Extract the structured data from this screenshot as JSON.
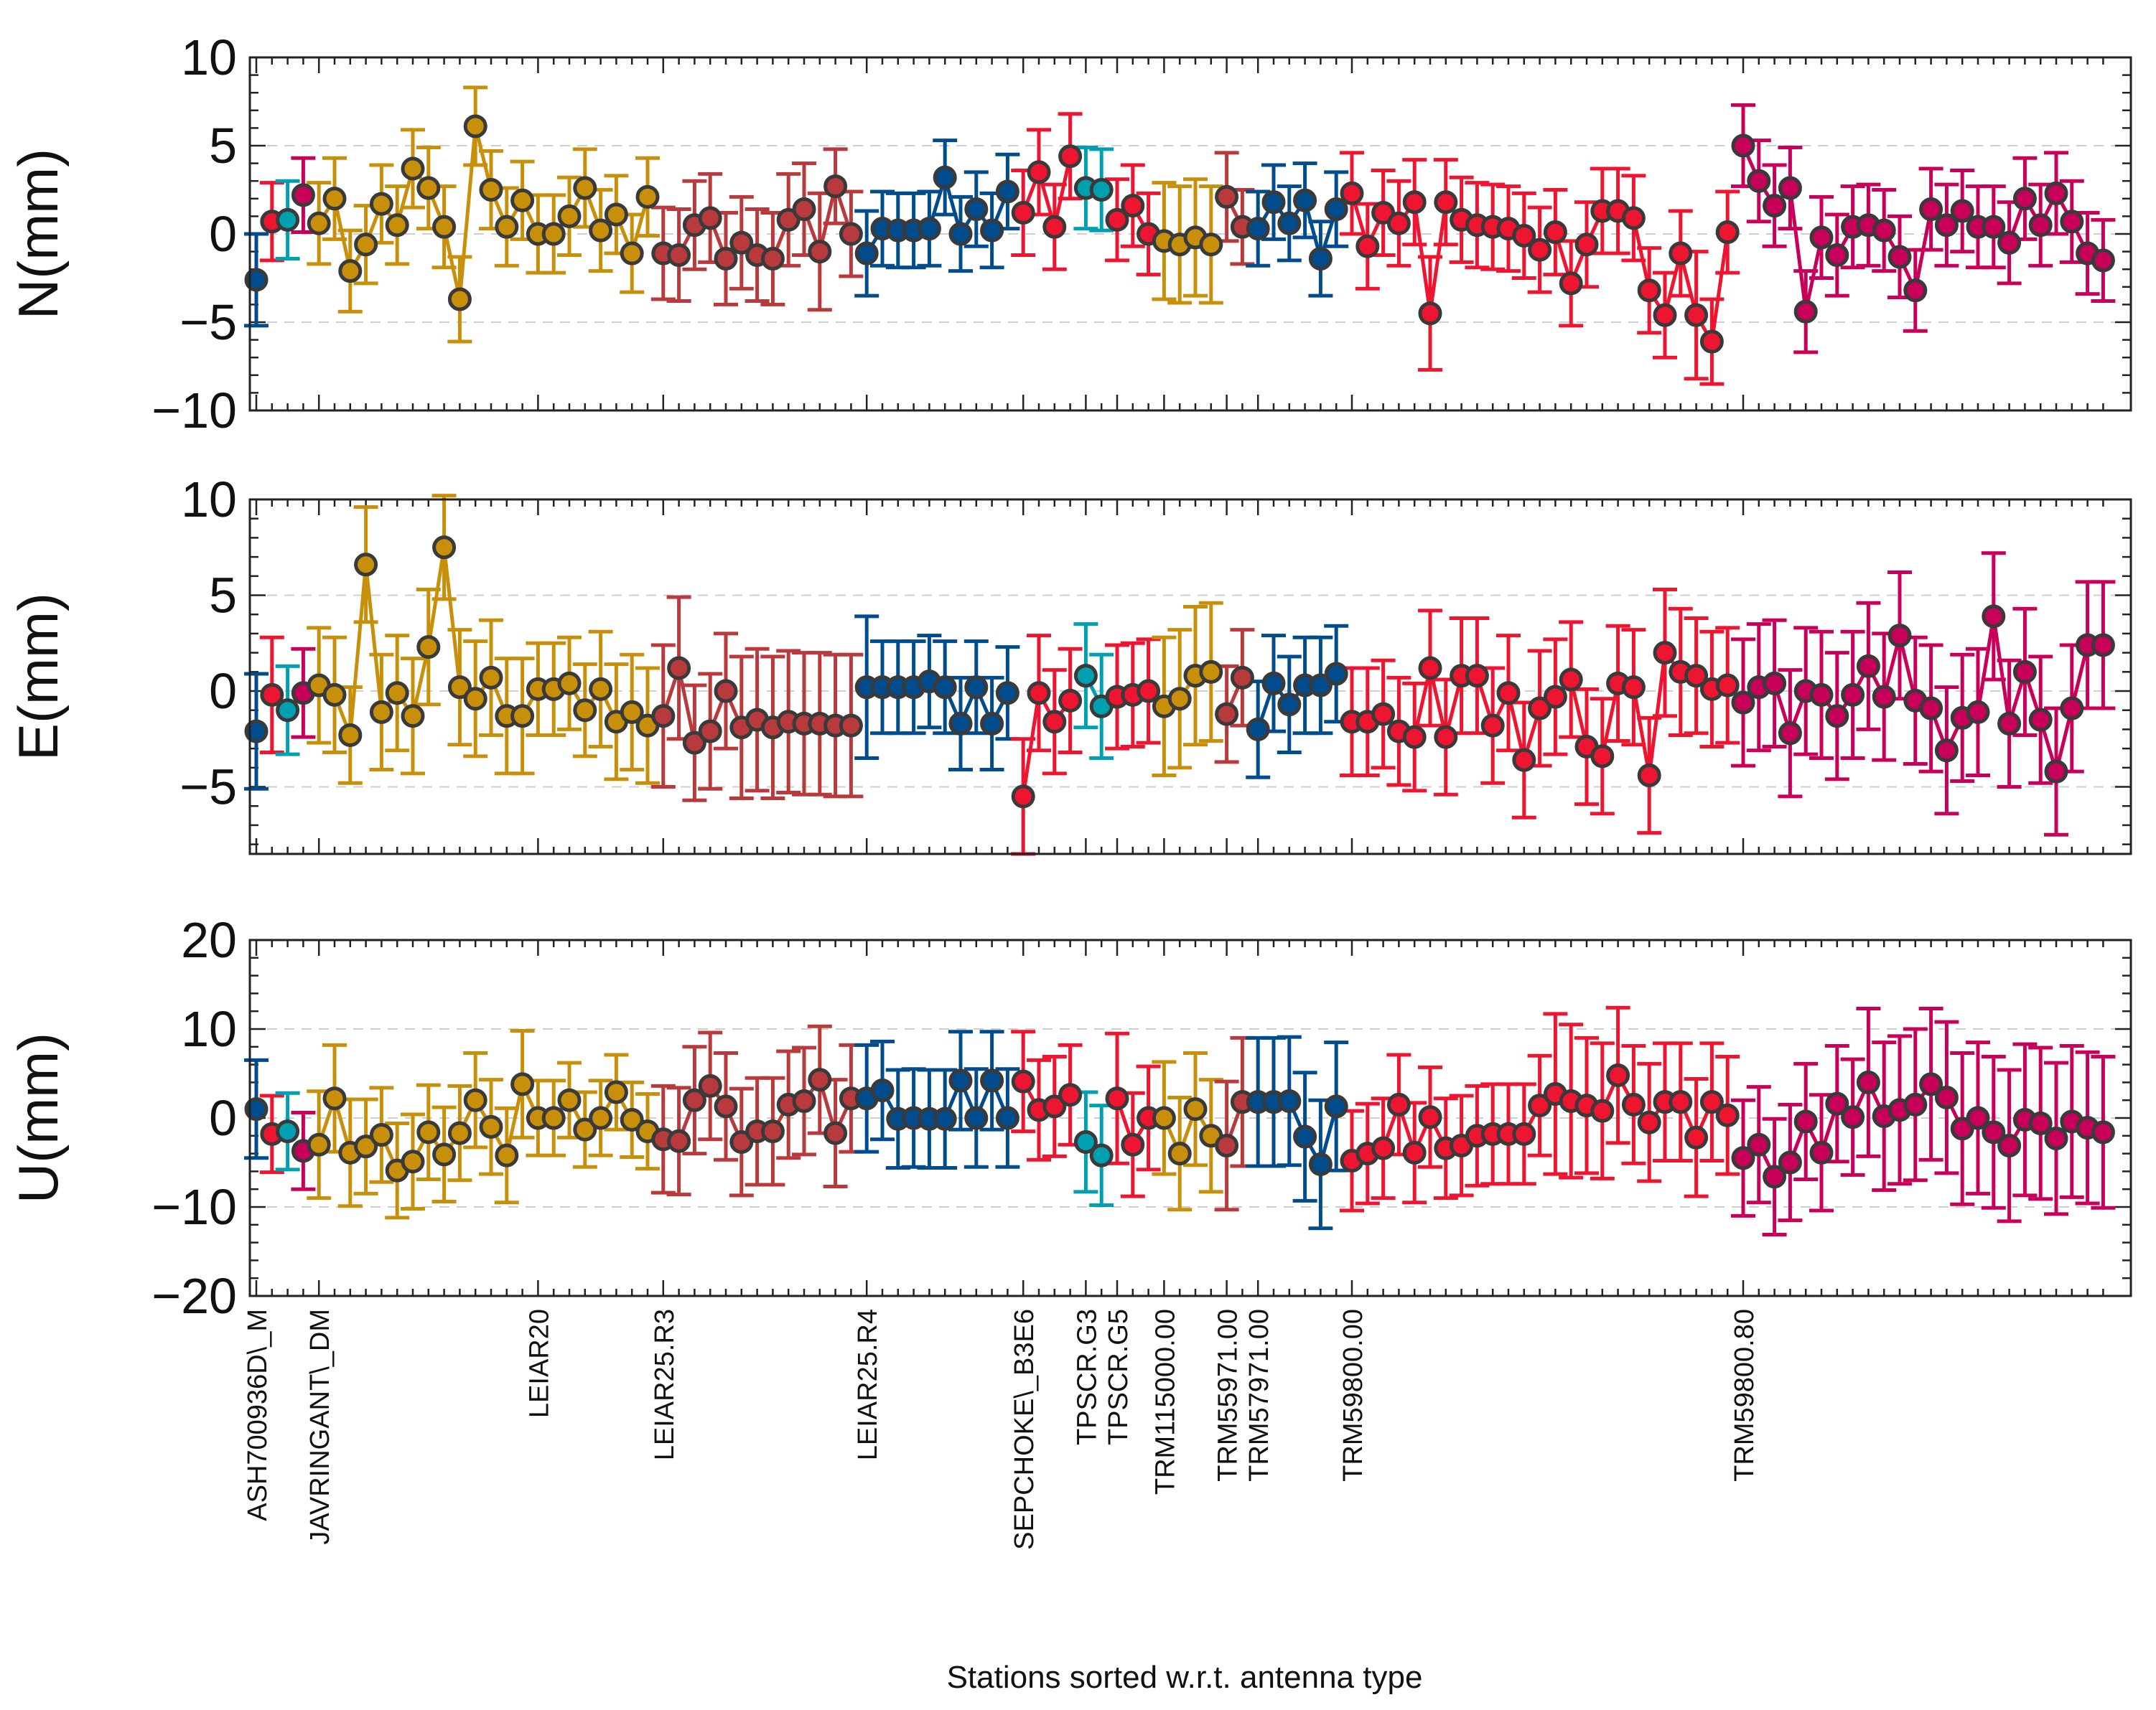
{
  "chart_data": {
    "type": "scatter",
    "xlabel": "Stations sorted w.r.t. antenna type",
    "group_colors": [
      "#00a0b0",
      "#c8900a",
      "#b83a3c",
      "#004c8c",
      "#ee1530",
      "#c8005a"
    ],
    "antenna_groups": [
      {
        "label": "ASH700936D\\_M",
        "start": 0
      },
      {
        "label": "JAVRINGANT\\_DM",
        "start": 4
      },
      {
        "label": "LEIAR20",
        "start": 18
      },
      {
        "label": "LEIAR25.R3",
        "start": 26
      },
      {
        "label": "LEIAR25.R4",
        "start": 39
      },
      {
        "label": "SEPCHOKE\\_B3E6",
        "start": 49
      },
      {
        "label": "TPSCR.G3",
        "start": 53
      },
      {
        "label": "TPSCR.G5",
        "start": 55
      },
      {
        "label": "TRM115000.00",
        "start": 58
      },
      {
        "label": "TRM55971.00",
        "start": 62
      },
      {
        "label": "TRM57971.00",
        "start": 64
      },
      {
        "label": "TRM59800.00",
        "start": 70
      },
      {
        "label": "TRM59800.80",
        "start": 95
      }
    ],
    "n_stations": 119,
    "panels": [
      {
        "ylabel": "N(mm)",
        "ylim": [
          -10,
          10
        ],
        "yticks": [
          -10,
          -5,
          0,
          5,
          10
        ],
        "yticklabels": [
          "−10",
          "−5",
          "0",
          "5",
          "10"
        ],
        "values": [
          -2.6,
          0.7,
          0.8,
          2.2,
          0.6,
          2.0,
          -2.1,
          -0.6,
          1.7,
          0.5,
          3.7,
          2.6,
          0.4,
          -3.7,
          6.1,
          2.5,
          0.4,
          1.9,
          0.0,
          0.0,
          1.0,
          2.6,
          0.2,
          1.1,
          -1.1,
          2.1,
          -1.1,
          -1.2,
          0.5,
          0.9,
          -1.4,
          -0.5,
          -1.2,
          -1.4,
          0.8,
          1.4,
          -1.0,
          2.7,
          0.0,
          -1.1,
          0.3,
          0.2,
          0.2,
          0.3,
          3.2,
          0.0,
          1.4,
          0.2,
          2.4,
          1.2,
          3.5,
          0.4,
          4.4,
          2.6,
          2.5,
          0.8,
          1.6,
          0.0,
          -0.4,
          -0.6,
          -0.2,
          -0.6,
          2.1,
          0.4,
          0.3,
          1.8,
          0.6,
          1.9,
          -1.4,
          1.4,
          2.3,
          -0.7,
          1.2,
          0.6,
          1.8,
          -4.5,
          1.8,
          0.8,
          0.5,
          0.4,
          0.3,
          -0.1,
          -0.9,
          0.1,
          -2.8,
          -0.6,
          1.3,
          1.3,
          0.9,
          -3.2,
          -4.6,
          -1.1,
          -4.6,
          -6.1,
          0.1,
          5.0,
          3.0,
          1.6,
          2.6,
          -4.4,
          -0.2,
          -1.2,
          0.4,
          0.5,
          0.2,
          -1.3,
          -3.2,
          1.4,
          0.5,
          1.3,
          0.4,
          0.4,
          -0.5,
          2.0,
          0.5,
          2.3,
          0.7,
          -1.1,
          -1.5
        ],
        "errors": [
          2.6,
          2.2,
          2.2,
          2.1,
          2.3,
          2.3,
          2.3,
          2.2,
          2.2,
          2.2,
          2.2,
          2.3,
          2.3,
          2.4,
          2.2,
          2.2,
          2.2,
          2.2,
          2.2,
          2.2,
          2.2,
          2.2,
          2.3,
          2.2,
          2.2,
          2.2,
          2.6,
          2.6,
          2.5,
          2.5,
          2.6,
          2.6,
          2.6,
          2.6,
          2.6,
          2.6,
          3.3,
          2.1,
          2.4,
          2.4,
          2.1,
          2.1,
          2.1,
          2.1,
          2.1,
          2.1,
          2.1,
          2.1,
          2.1,
          2.4,
          2.4,
          2.4,
          2.4,
          2.3,
          2.3,
          2.3,
          2.3,
          2.3,
          3.3,
          3.3,
          3.3,
          3.3,
          2.5,
          2.1,
          2.1,
          2.1,
          2.1,
          2.1,
          2.1,
          2.1,
          2.3,
          2.4,
          2.4,
          2.4,
          2.4,
          3.2,
          2.4,
          2.4,
          2.4,
          2.4,
          2.4,
          2.4,
          2.4,
          2.4,
          2.4,
          2.4,
          2.4,
          2.4,
          2.4,
          2.4,
          2.4,
          2.4,
          3.6,
          2.4,
          2.3,
          2.3,
          2.3,
          2.3,
          2.3,
          2.3,
          2.3,
          2.3,
          2.3,
          2.3,
          2.3,
          2.3,
          2.3,
          2.3,
          2.3,
          2.3,
          2.3,
          2.3,
          2.3,
          2.3,
          2.3,
          2.3,
          2.3,
          2.3,
          2.3
        ]
      },
      {
        "ylabel": "E(mm)",
        "ylim": [
          -8.5,
          10
        ],
        "yticks": [
          -5,
          0,
          5,
          10
        ],
        "yticklabels": [
          "−5",
          "0",
          "5",
          "10"
        ],
        "values": [
          -2.1,
          -0.2,
          -1.0,
          -0.1,
          0.3,
          -0.2,
          -2.3,
          6.6,
          -1.1,
          -0.1,
          -1.3,
          2.3,
          7.5,
          0.2,
          -0.4,
          0.7,
          -1.3,
          -1.3,
          0.1,
          0.1,
          0.4,
          -1.0,
          0.1,
          -1.6,
          -1.1,
          -1.8,
          -1.3,
          1.2,
          -2.7,
          -2.1,
          0.0,
          -1.9,
          -1.5,
          -1.9,
          -1.6,
          -1.7,
          -1.7,
          -1.8,
          -1.8,
          0.2,
          0.2,
          0.2,
          0.2,
          0.5,
          0.2,
          -1.7,
          0.2,
          -1.7,
          -0.1,
          -5.5,
          -0.1,
          -1.6,
          -0.5,
          0.8,
          -0.8,
          -0.3,
          -0.2,
          0.0,
          -0.8,
          -0.4,
          0.8,
          1.0,
          -1.2,
          0.7,
          -2.0,
          0.4,
          -0.7,
          0.3,
          0.3,
          0.9,
          -1.6,
          -1.6,
          -1.2,
          -2.1,
          -2.4,
          1.2,
          -2.4,
          0.8,
          0.8,
          -1.8,
          -0.1,
          -3.6,
          -0.9,
          -0.3,
          0.6,
          -2.9,
          -3.4,
          0.4,
          0.2,
          -4.4,
          2.0,
          1.0,
          0.8,
          0.1,
          0.3,
          -0.6,
          0.2,
          0.4,
          -2.2,
          0.0,
          -0.2,
          -1.3,
          -0.2,
          1.3,
          -0.3,
          2.9,
          -0.5,
          -0.9,
          -3.1,
          -1.4,
          -1.1,
          3.9,
          -1.7,
          1.0,
          -1.5,
          -4.2,
          -0.9,
          2.4,
          2.4
        ],
        "errors": [
          3.0,
          3.0,
          2.3,
          2.3,
          3.0,
          3.0,
          2.5,
          3.0,
          3.0,
          3.0,
          3.0,
          3.0,
          2.7,
          3.0,
          3.0,
          3.0,
          3.0,
          3.0,
          2.4,
          2.4,
          2.4,
          2.4,
          3.0,
          3.0,
          3.0,
          3.0,
          3.7,
          3.7,
          3.0,
          3.0,
          3.0,
          3.7,
          3.7,
          3.7,
          3.7,
          3.7,
          3.7,
          3.7,
          3.7,
          3.7,
          2.4,
          2.4,
          2.4,
          2.4,
          2.4,
          2.4,
          2.4,
          2.4,
          2.4,
          3.0,
          3.0,
          2.7,
          2.7,
          2.7,
          2.7,
          2.7,
          2.7,
          2.7,
          3.6,
          3.6,
          3.6,
          3.6,
          2.5,
          2.5,
          2.5,
          2.5,
          2.5,
          2.5,
          2.5,
          2.5,
          2.8,
          2.8,
          2.8,
          2.8,
          2.8,
          3.0,
          3.0,
          3.0,
          3.0,
          3.0,
          3.0,
          3.0,
          3.0,
          3.0,
          3.0,
          3.0,
          3.0,
          3.0,
          3.0,
          3.0,
          3.3,
          3.3,
          3.0,
          3.0,
          3.0,
          3.3,
          3.3,
          3.3,
          3.3,
          3.3,
          3.3,
          3.3,
          3.3,
          3.3,
          3.3,
          3.3,
          3.3,
          3.3,
          3.3,
          3.3,
          3.3,
          3.3,
          3.3,
          3.3,
          3.3,
          3.3,
          3.3,
          3.3,
          3.3
        ]
      },
      {
        "ylabel": "U(mm)",
        "ylim": [
          -20,
          20
        ],
        "yticks": [
          -20,
          -10,
          0,
          10,
          20
        ],
        "yticklabels": [
          "−20",
          "−10",
          "0",
          "10",
          "20"
        ],
        "values": [
          1.0,
          -1.8,
          -1.5,
          -3.7,
          -3.0,
          2.2,
          -3.9,
          -3.2,
          -1.9,
          -5.9,
          -4.9,
          -1.6,
          -4.1,
          -1.7,
          2.0,
          -1.0,
          -4.2,
          3.8,
          0.0,
          0.0,
          2.0,
          -1.3,
          0.0,
          2.9,
          -0.2,
          -1.5,
          -2.4,
          -2.6,
          2.0,
          3.6,
          1.3,
          -2.7,
          -1.5,
          -1.5,
          1.5,
          1.9,
          4.3,
          -1.7,
          2.2,
          2.2,
          3.1,
          -0.1,
          0.0,
          -0.1,
          -0.1,
          4.2,
          0.0,
          4.2,
          0.0,
          4.1,
          0.9,
          1.3,
          2.6,
          -2.7,
          -4.2,
          2.2,
          -3.0,
          0.0,
          0.0,
          -4.0,
          1.0,
          -2.0,
          -3.1,
          1.8,
          1.8,
          1.8,
          1.9,
          -2.1,
          -5.2,
          1.3,
          -4.8,
          -4.0,
          -3.4,
          1.5,
          -3.9,
          0.1,
          -3.4,
          -3.1,
          -2.0,
          -1.8,
          -1.8,
          -1.8,
          1.4,
          2.7,
          1.9,
          1.4,
          0.8,
          4.8,
          1.5,
          -0.5,
          1.8,
          1.8,
          -2.2,
          1.8,
          0.3,
          -4.5,
          -3.0,
          -6.6,
          -5.0,
          -0.4,
          -3.9,
          1.6,
          0.1,
          4.0,
          0.2,
          0.9,
          1.5,
          3.8,
          2.3,
          -1.2,
          0.0,
          -1.6,
          -3.1,
          -0.2,
          -0.6,
          -2.3,
          -0.4,
          -1.1,
          -1.6
        ],
        "errors": [
          5.5,
          4.3,
          4.3,
          4.3,
          6.0,
          6.0,
          6.0,
          5.3,
          5.3,
          5.3,
          5.3,
          5.3,
          5.3,
          5.3,
          5.3,
          5.3,
          5.3,
          6.0,
          4.2,
          4.2,
          4.2,
          4.2,
          4.2,
          4.2,
          4.2,
          4.2,
          6.0,
          6.0,
          6.0,
          6.0,
          6.0,
          6.0,
          6.0,
          6.0,
          6.0,
          6.0,
          6.0,
          6.0,
          6.0,
          6.0,
          5.5,
          5.5,
          5.5,
          5.5,
          5.5,
          5.5,
          5.5,
          5.5,
          5.5,
          5.6,
          5.6,
          5.6,
          5.6,
          5.6,
          5.6,
          7.3,
          5.8,
          5.8,
          6.3,
          6.3,
          6.3,
          6.3,
          7.2,
          7.2,
          7.2,
          7.2,
          7.2,
          7.2,
          7.2,
          7.2,
          5.6,
          5.6,
          5.6,
          5.6,
          5.6,
          5.6,
          5.6,
          5.6,
          5.6,
          5.6,
          5.6,
          5.6,
          5.6,
          9.0,
          8.6,
          7.6,
          7.6,
          7.6,
          6.6,
          6.6,
          6.6,
          6.6,
          6.6,
          6.6,
          6.6,
          6.5,
          6.5,
          6.5,
          6.5,
          6.5,
          6.5,
          6.5,
          6.5,
          8.3,
          8.3,
          8.3,
          8.5,
          8.5,
          8.5,
          8.5,
          8.5,
          8.5,
          8.5,
          8.5,
          8.5,
          8.5,
          8.5,
          8.5,
          8.5
        ]
      }
    ]
  }
}
